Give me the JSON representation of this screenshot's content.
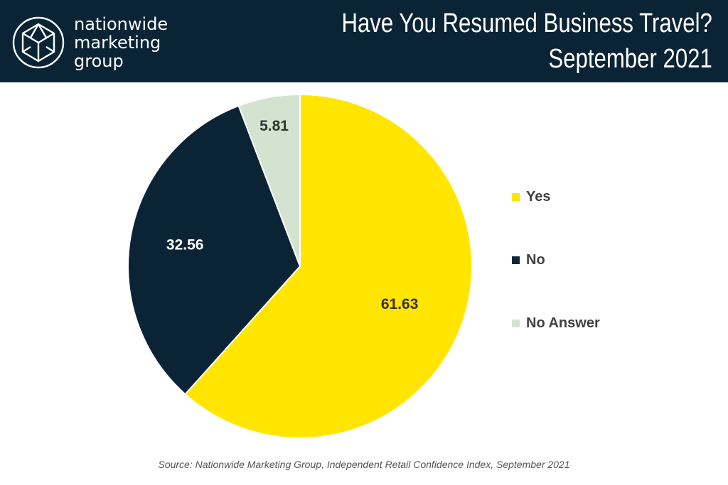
{
  "header": {
    "brand_lines": [
      "nationwide",
      "marketing",
      "group"
    ],
    "title_line1": "Have You Resumed Business Travel?",
    "title_line2": "September 2021",
    "background_color": "#0a2436"
  },
  "chart_data": {
    "type": "pie",
    "title": "Have You Resumed Business Travel? September 2021",
    "slices": [
      {
        "label": "Yes",
        "value": 61.63,
        "color": "#ffe500",
        "label_color": "#333333"
      },
      {
        "label": "No",
        "value": 32.56,
        "color": "#0a2436",
        "label_color": "#ffffff"
      },
      {
        "label": "No Answer",
        "value": 5.81,
        "color": "#d3e3cf",
        "label_color": "#333333"
      }
    ],
    "start_angle_deg": 0,
    "direction": "clockwise",
    "legend_position": "right"
  },
  "footer": {
    "source": "Source: Nationwide Marketing Group, Independent Retail Confidence Index, September 2021"
  }
}
